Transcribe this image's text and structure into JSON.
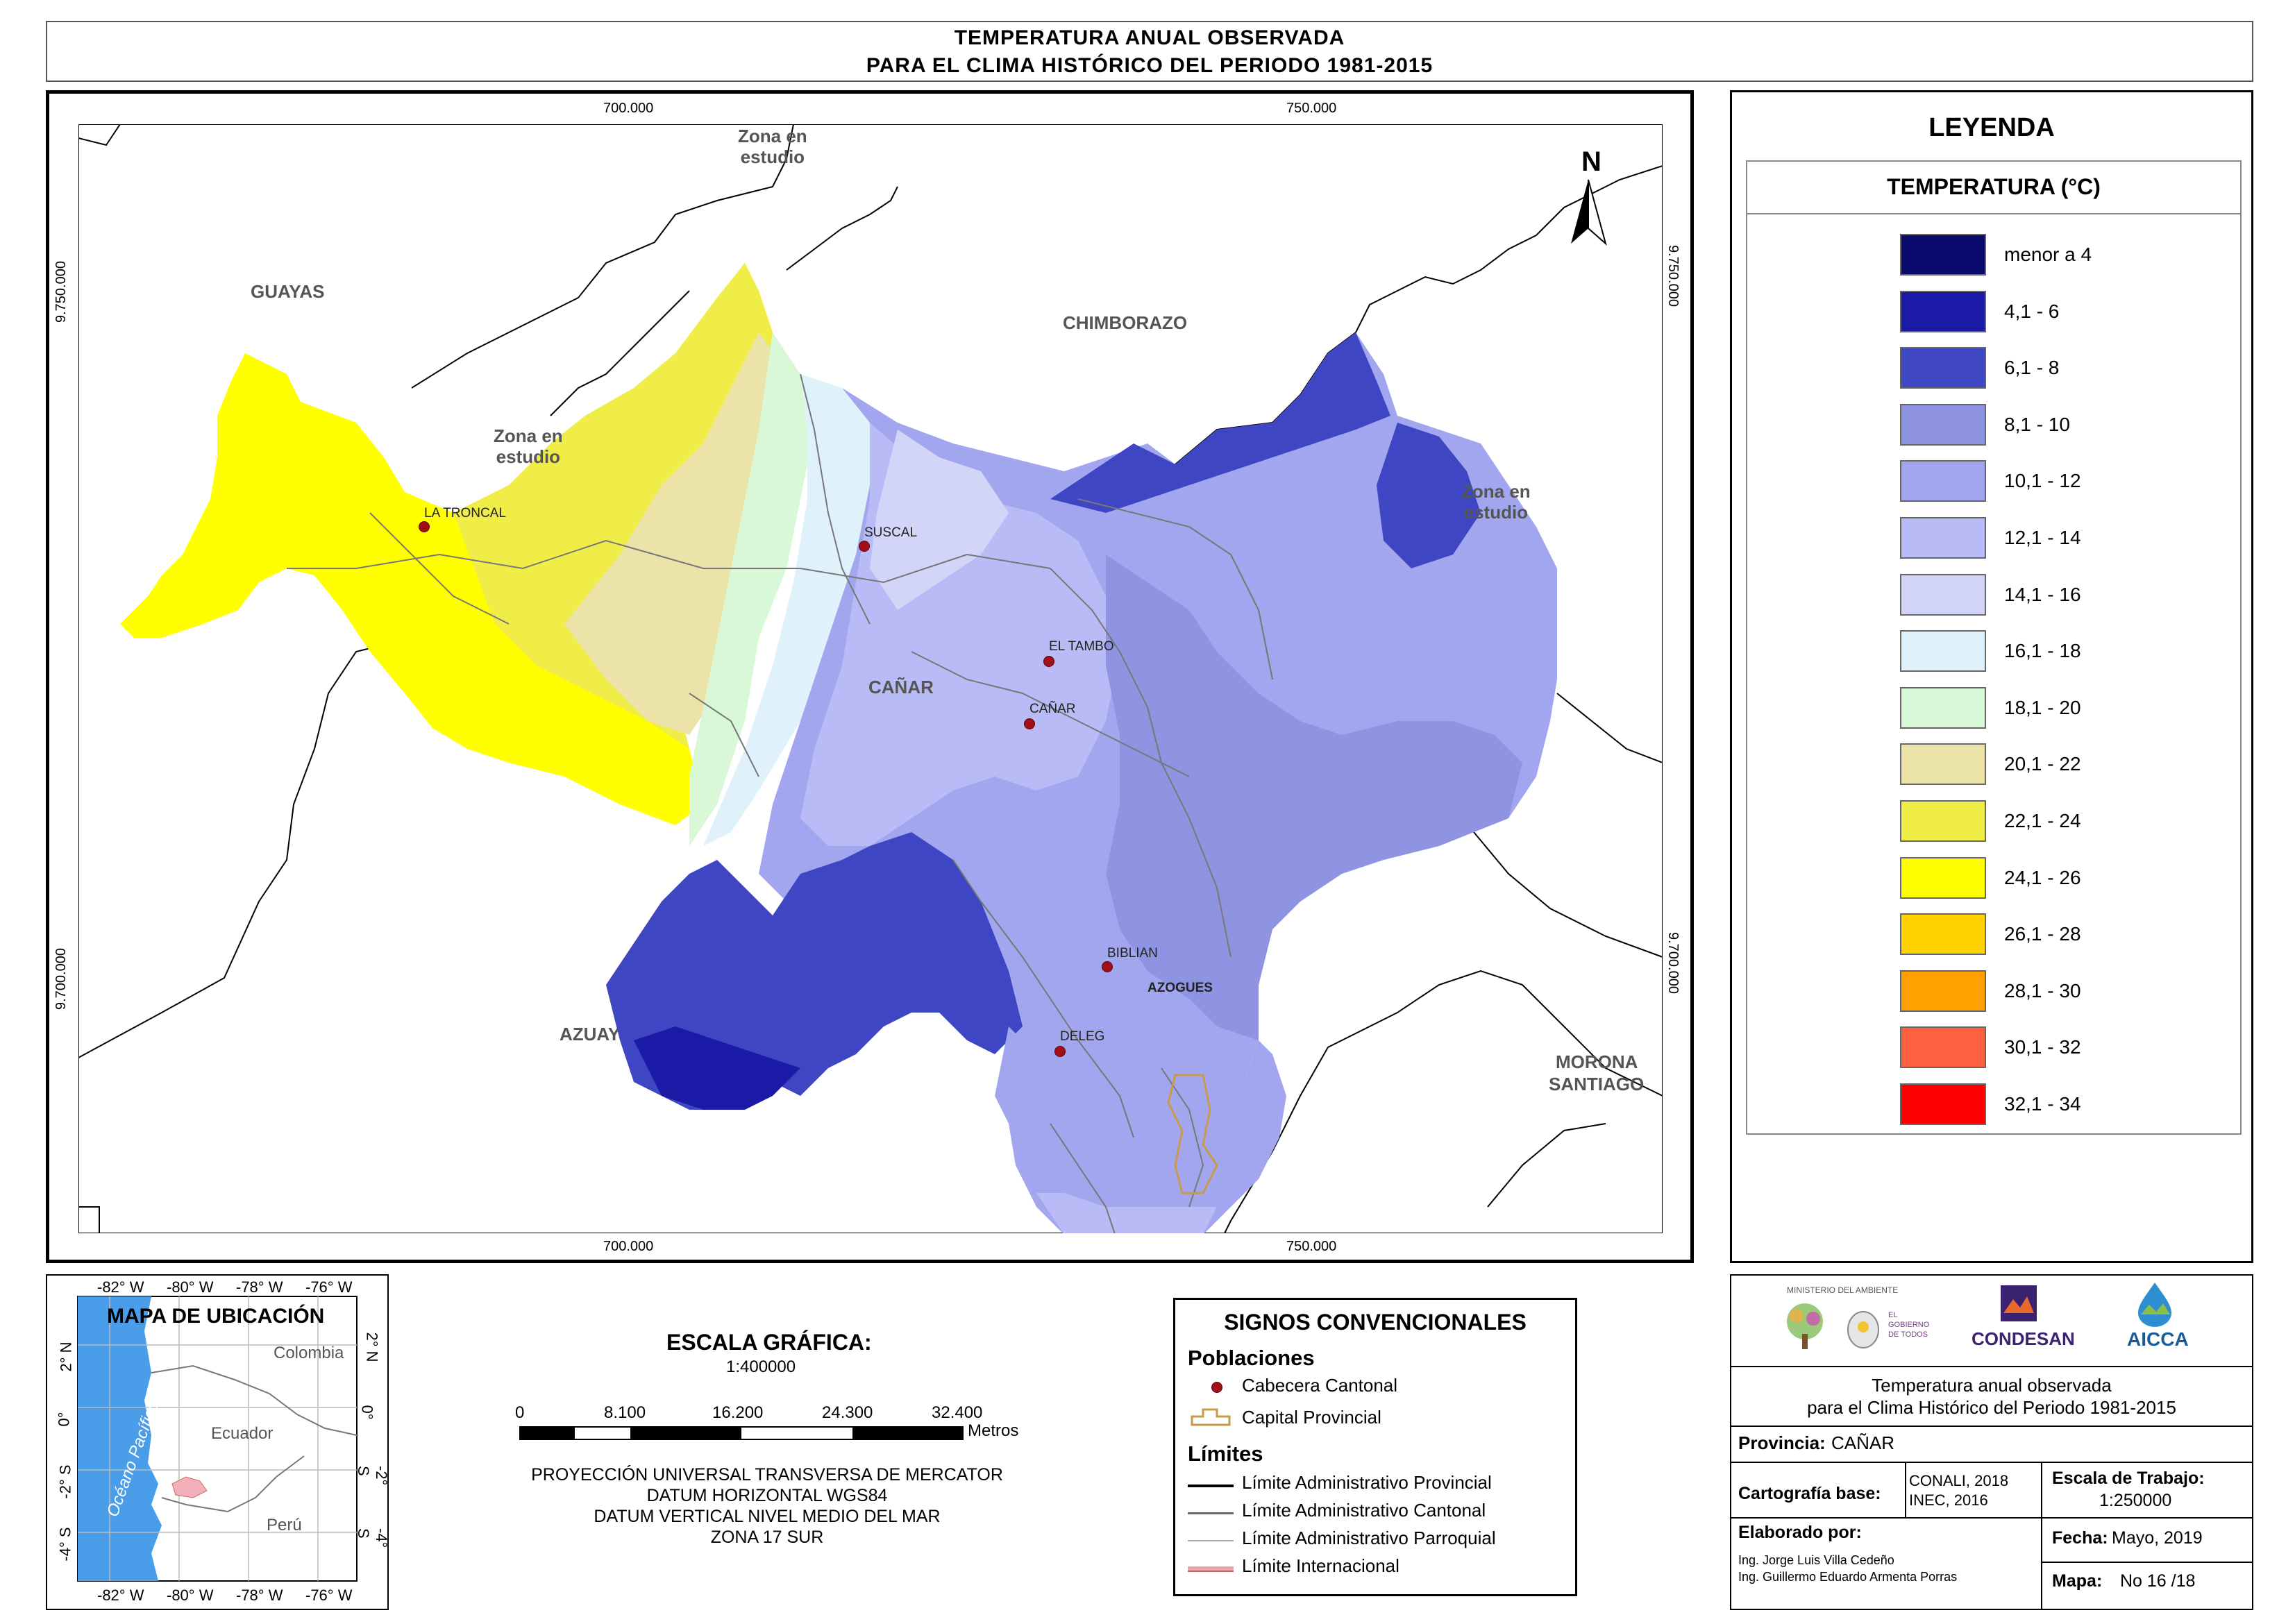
{
  "title": {
    "line1": "TEMPERATURA ANUAL OBSERVADA",
    "line2": "PARA EL CLIMA HISTÓRICO DEL PERIODO 1981-2015"
  },
  "map": {
    "coords_top": [
      "700.000",
      "750.000"
    ],
    "coords_bottom": [
      "700.000",
      "750.000"
    ],
    "coords_left": [
      "9.750.000",
      "9.700.000"
    ],
    "coords_right": [
      "9.750.000",
      "9.700.000"
    ],
    "north": "N",
    "regions": {
      "guayas": "GUAYAS",
      "chimborazo": "CHIMBORAZO",
      "azuay": "AZUAY",
      "canar": "CAÑAR",
      "morona_1": "MORONA",
      "morona_2": "SANTIAGO"
    },
    "zona": {
      "line1": "Zona en",
      "line2": "estudio"
    },
    "towns": {
      "la_troncal": "LA TRONCAL",
      "suscal": "SUSCAL",
      "el_tambo": "EL TAMBO",
      "canar": "CAÑAR",
      "biblian": "BIBLIAN",
      "azogues": "AZOGUES",
      "deleg": "DELEG"
    }
  },
  "legend": {
    "title": "LEYENDA",
    "subtitle": "TEMPERATURA (°C)",
    "items": [
      {
        "label": "menor a 4",
        "color": "#0a0a6e"
      },
      {
        "label": "4,1 - 6",
        "color": "#1a1aa6"
      },
      {
        "label": "6,1 - 8",
        "color": "#3f46c4"
      },
      {
        "label": "8,1 - 10",
        "color": "#8e93e2"
      },
      {
        "label": "10,1 - 12",
        "color": "#a2a6ee"
      },
      {
        "label": "12,1 - 14",
        "color": "#b8bbf5"
      },
      {
        "label": "14,1 - 16",
        "color": "#d2d4f8"
      },
      {
        "label": "16,1 - 18",
        "color": "#dff2fb"
      },
      {
        "label": "18,1 - 20",
        "color": "#d8f8d8"
      },
      {
        "label": "20,1 - 22",
        "color": "#ebe3a8"
      },
      {
        "label": "22,1 - 24",
        "color": "#f0ec48"
      },
      {
        "label": "24,1 - 26",
        "color": "#ffff00"
      },
      {
        "label": "26,1 - 28",
        "color": "#ffd200"
      },
      {
        "label": "28,1 - 30",
        "color": "#ff9f00"
      },
      {
        "label": "30,1 - 32",
        "color": "#ff6040"
      },
      {
        "label": "32,1 - 34",
        "color": "#ff0000"
      }
    ]
  },
  "location_map": {
    "title": "MAPA DE UBICACIÓN",
    "lon_labels": [
      "-82° W",
      "-80° W",
      "-78° W",
      "-76° W"
    ],
    "lat_labels": [
      "2° N",
      "0°",
      "-2° S",
      "-4° S"
    ],
    "countries": {
      "colombia": "Colombia",
      "ecuador": "Ecuador",
      "peru": "Perú"
    },
    "ocean": "Océano Pacífico"
  },
  "scale": {
    "title": "ESCALA GRÁFICA:",
    "ratio": "1:400000",
    "ticks": [
      "0",
      "8.100",
      "16.200",
      "24.300",
      "32.400"
    ],
    "unit": "Metros",
    "projection": [
      "PROYECCIÓN UNIVERSAL TRANSVERSA DE MERCATOR",
      "DATUM HORIZONTAL WGS84",
      "DATUM VERTICAL NIVEL MEDIO DEL MAR",
      "ZONA 17 SUR"
    ]
  },
  "signos": {
    "title": "SIGNOS CONVENCIONALES",
    "poblaciones": "Poblaciones",
    "cabecera": "Cabecera Cantonal",
    "capital": "Capital Provincial",
    "limites": "Límites",
    "provincial": "Límite Administrativo Provincial",
    "cantonal": "Límite Administrativo Cantonal",
    "parroquial": "Límite Administrativo Parroquial",
    "internacional": "Límite Internacional"
  },
  "info": {
    "logos": {
      "ministerio": "MINISTERIO DEL AMBIENTE",
      "gobierno": "EL GOBIERNO DE TODOS",
      "condesan": "CONDESAN",
      "aicca": "AICCA"
    },
    "description_1": "Temperatura anual observada",
    "description_2": "para el Clima Histórico del Periodo 1981-2015",
    "provincia_label": "Provincia:",
    "provincia_value": "CAÑAR",
    "cartografia_label": "Cartografía base:",
    "cartografia_value_1": "CONALI, 2018",
    "cartografia_value_2": "INEC, 2016",
    "escala_label": "Escala de Trabajo:",
    "escala_value": "1:250000",
    "elaborado_label": "Elaborado por:",
    "autor_1": "Ing. Jorge Luis Villa Cedeño",
    "autor_2": "Ing. Guillermo Eduardo Armenta Porras",
    "fecha_label": "Fecha:",
    "fecha_value": "Mayo, 2019",
    "mapa_label": "Mapa:",
    "mapa_value": "No 16 /18"
  }
}
